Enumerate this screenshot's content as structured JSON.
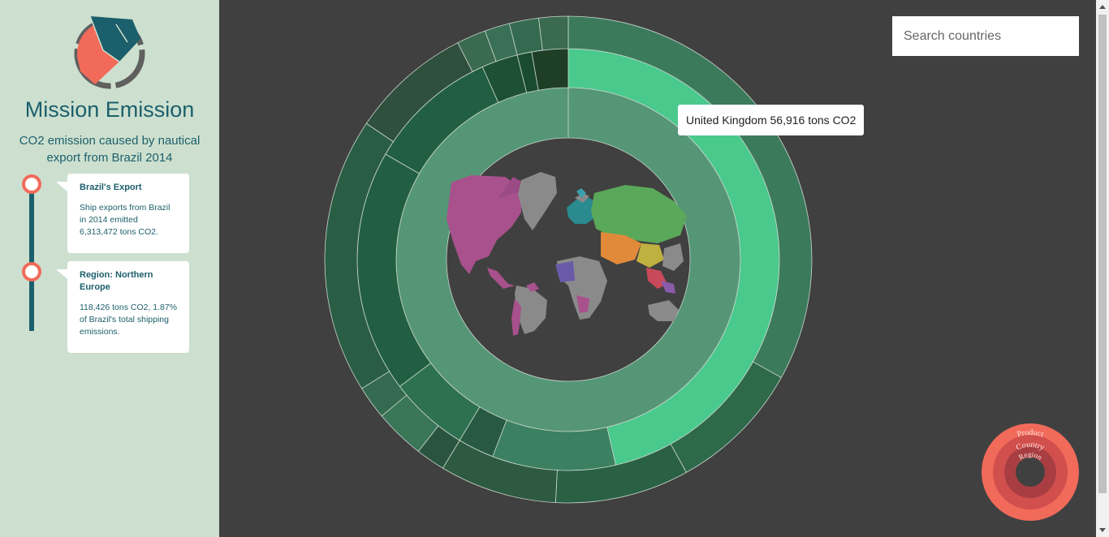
{
  "app": {
    "title": "Mission Emission",
    "subtitle": "CO2 emission caused by nautical export from Brazil 2014"
  },
  "timeline": [
    {
      "title": "Brazil's Export",
      "body": "Ship exports from Brazil in 2014 emitted 6,313,472 tons CO2."
    },
    {
      "title": "Region: Northern Europe",
      "body": "118,426 tons CO2, 1.87% of Brazil's total shipping emissions."
    }
  ],
  "search": {
    "placeholder": "Search countries",
    "value": ""
  },
  "tooltip": {
    "text": "United Kingdom 56,916 tons CO2"
  },
  "legend": {
    "outer": "Product",
    "middle": "Country",
    "inner": "Region"
  },
  "colors": {
    "sidebar_bg": "#cde0cf",
    "accent": "#1c5f6c",
    "coral": "#f26a5a",
    "highlight": "#4ac98d",
    "region_ring": "#559676"
  }
}
